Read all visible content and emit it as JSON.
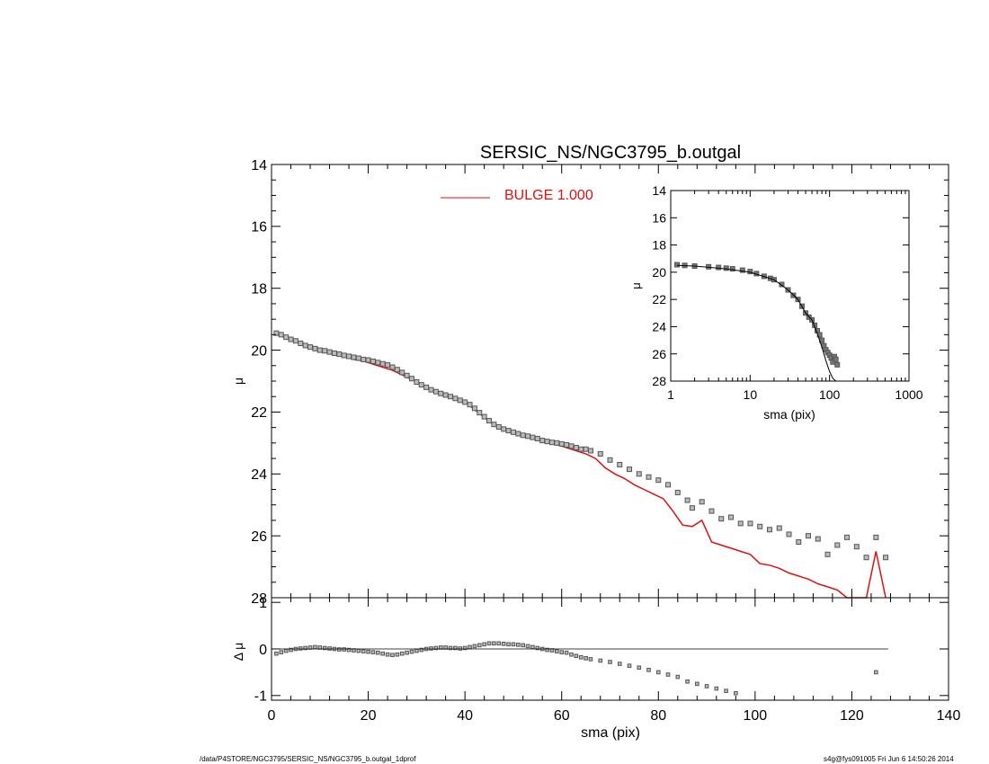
{
  "colors": {
    "axes": "#000000",
    "model": "#e01010",
    "points": "#555555",
    "background": "#ffffff"
  },
  "footer": {
    "path": "/data/P4STORE/NGC3795/SERSIC_NS/NGC3795_b.outgal_1dprof",
    "stamp": "s4g@fys091005  Fri Jun  6 14:50:26 2014"
  },
  "chart_data": [
    {
      "id": "main",
      "type": "scatter",
      "title": "SERSIC_NS/NGC3795_b.outgal",
      "xlabel": "",
      "ylabel": "μ",
      "xlim": [
        0,
        140
      ],
      "ylim": [
        28,
        14
      ],
      "xticks": [
        0,
        20,
        40,
        60,
        80,
        100,
        120,
        140
      ],
      "yticks": [
        14,
        16,
        18,
        20,
        22,
        24,
        26,
        28
      ],
      "legend": {
        "label": "BULGE  1.000",
        "placement": "top-center"
      },
      "series": [
        {
          "name": "BULGE  1.000",
          "style": "line",
          "x": [
            1,
            3,
            5,
            7,
            9,
            11,
            13,
            15,
            17,
            19,
            21,
            23,
            25,
            27,
            29,
            31,
            33,
            35,
            37,
            39,
            40,
            41,
            43,
            45,
            47,
            49,
            51,
            53,
            55,
            57,
            59,
            61,
            63,
            65,
            67,
            69,
            71,
            73,
            75,
            77,
            79,
            81,
            83,
            85,
            87,
            89,
            91,
            93,
            95,
            97,
            99,
            101,
            103,
            105,
            107,
            109,
            111,
            113,
            115,
            117,
            119,
            121,
            123,
            125,
            127
          ],
          "y": [
            19.5,
            19.6,
            19.7,
            19.8,
            19.9,
            20.0,
            20.1,
            20.2,
            20.3,
            20.35,
            20.45,
            20.55,
            20.65,
            20.8,
            20.95,
            21.1,
            21.25,
            21.4,
            21.5,
            21.6,
            21.65,
            21.8,
            22.05,
            22.3,
            22.5,
            22.6,
            22.7,
            22.8,
            22.85,
            22.95,
            23.05,
            23.15,
            23.25,
            23.35,
            23.5,
            23.8,
            24.0,
            24.15,
            24.35,
            24.5,
            24.65,
            24.8,
            25.2,
            25.65,
            25.7,
            25.5,
            26.2,
            26.3,
            26.4,
            26.5,
            26.6,
            26.9,
            26.95,
            27.05,
            27.2,
            27.3,
            27.4,
            27.55,
            27.65,
            27.75,
            28.1,
            28.6,
            28.3,
            26.5,
            28.2
          ]
        },
        {
          "name": "",
          "style": "points",
          "x": [
            1,
            2,
            3,
            4,
            5,
            6,
            7,
            8,
            9,
            10,
            11,
            12,
            13,
            14,
            15,
            16,
            17,
            18,
            19,
            20,
            21,
            22,
            23,
            24,
            25,
            26,
            27,
            28,
            29,
            30,
            31,
            32,
            33,
            34,
            35,
            36,
            37,
            38,
            39,
            40,
            41,
            42,
            43,
            44,
            45,
            46,
            47,
            48,
            49,
            50,
            51,
            52,
            53,
            54,
            55,
            56,
            57,
            58,
            59,
            60,
            61,
            62,
            63,
            64,
            65,
            66,
            68,
            70,
            72,
            74,
            76,
            78,
            80,
            82,
            84,
            86,
            87,
            89,
            91,
            93,
            95,
            97,
            99,
            101,
            103,
            105,
            107,
            109,
            111,
            113,
            115,
            117,
            119,
            121,
            123,
            125,
            127
          ],
          "y": [
            19.45,
            19.5,
            19.58,
            19.65,
            19.7,
            19.78,
            19.85,
            19.9,
            19.95,
            20.0,
            20.02,
            20.06,
            20.1,
            20.13,
            20.17,
            20.2,
            20.23,
            20.26,
            20.3,
            20.32,
            20.36,
            20.4,
            20.44,
            20.48,
            20.55,
            20.63,
            20.72,
            20.82,
            20.92,
            21.03,
            21.12,
            21.2,
            21.28,
            21.34,
            21.4,
            21.45,
            21.5,
            21.56,
            21.62,
            21.68,
            21.76,
            21.88,
            22.02,
            22.15,
            22.28,
            22.4,
            22.48,
            22.55,
            22.6,
            22.65,
            22.7,
            22.75,
            22.78,
            22.82,
            22.86,
            22.92,
            22.95,
            22.98,
            23.0,
            23.03,
            23.06,
            23.1,
            23.15,
            23.2,
            23.2,
            23.25,
            23.35,
            23.55,
            23.7,
            23.85,
            24.0,
            24.1,
            24.2,
            24.35,
            24.6,
            24.85,
            25.1,
            24.9,
            25.2,
            25.45,
            25.4,
            25.6,
            25.6,
            25.7,
            25.8,
            25.75,
            25.95,
            26.2,
            26.0,
            26.1,
            26.6,
            26.3,
            26.05,
            26.35,
            26.7,
            26.05,
            26.7
          ]
        }
      ]
    },
    {
      "id": "inset",
      "type": "scatter",
      "title": "",
      "xlabel": "sma (pix)",
      "ylabel": "μ",
      "xscale": "log",
      "xlim": [
        1,
        1000
      ],
      "ylim": [
        28,
        14
      ],
      "xticks": [
        1,
        10,
        100,
        1000
      ],
      "xticklabels": [
        "1",
        "10",
        "100",
        "1000"
      ],
      "yticks": [
        14,
        16,
        18,
        20,
        22,
        24,
        26,
        28
      ],
      "series": [
        {
          "name": "",
          "style": "points",
          "x": [
            1.2,
            1.5,
            2,
            3,
            4,
            5,
            6,
            8,
            10,
            12,
            15,
            18,
            20,
            25,
            30,
            35,
            40,
            45,
            50,
            55,
            60,
            65,
            70,
            75,
            80,
            85,
            90,
            95,
            100,
            105,
            110,
            115,
            120,
            125
          ],
          "y": [
            19.45,
            19.5,
            19.55,
            19.6,
            19.65,
            19.7,
            19.75,
            19.85,
            19.95,
            20.1,
            20.3,
            20.45,
            20.55,
            20.9,
            21.3,
            21.7,
            22.0,
            22.5,
            23.0,
            23.3,
            23.5,
            23.9,
            24.3,
            24.6,
            25.0,
            25.4,
            25.7,
            25.9,
            26.1,
            26.3,
            26.6,
            26.2,
            26.4,
            26.8
          ]
        },
        {
          "name": "",
          "style": "line",
          "x": [
            1.2,
            2,
            5,
            10,
            20,
            30,
            40,
            50,
            60,
            70,
            80,
            90,
            100,
            110,
            120
          ],
          "y": [
            19.5,
            19.55,
            19.75,
            20.0,
            20.55,
            21.3,
            22.0,
            23.0,
            23.5,
            24.5,
            25.5,
            26.5,
            27.3,
            27.8,
            28.0
          ]
        }
      ]
    },
    {
      "id": "residual",
      "type": "scatter",
      "title": "",
      "xlabel": "sma (pix)",
      "ylabel": "Δ μ",
      "xlim": [
        0,
        140
      ],
      "ylim": [
        -1.1,
        1.1
      ],
      "xticks": [
        0,
        20,
        40,
        60,
        80,
        100,
        120,
        140
      ],
      "yticks": [
        -1,
        0,
        1
      ],
      "yticklabels": [
        "-1",
        "0",
        "1"
      ],
      "series": [
        {
          "name": "",
          "style": "points",
          "x": [
            1,
            2,
            3,
            4,
            5,
            6,
            7,
            8,
            9,
            10,
            11,
            12,
            13,
            14,
            15,
            16,
            17,
            18,
            19,
            20,
            21,
            22,
            23,
            24,
            25,
            26,
            27,
            28,
            29,
            30,
            31,
            32,
            33,
            34,
            35,
            36,
            37,
            38,
            39,
            40,
            41,
            42,
            43,
            44,
            45,
            46,
            47,
            48,
            49,
            50,
            51,
            52,
            53,
            54,
            55,
            56,
            57,
            58,
            59,
            60,
            61,
            62,
            63,
            64,
            65,
            66,
            68,
            70,
            72,
            74,
            76,
            78,
            80,
            82,
            84,
            86,
            88,
            90,
            92,
            94,
            96,
            125
          ],
          "y": [
            -0.1,
            -0.07,
            -0.04,
            -0.02,
            0.0,
            0.01,
            0.02,
            0.03,
            0.04,
            0.03,
            0.02,
            0.01,
            0.0,
            -0.01,
            -0.01,
            -0.02,
            -0.03,
            -0.04,
            -0.05,
            -0.06,
            -0.07,
            -0.08,
            -0.1,
            -0.12,
            -0.13,
            -0.12,
            -0.1,
            -0.08,
            -0.06,
            -0.04,
            -0.02,
            0.0,
            0.01,
            0.02,
            0.03,
            0.03,
            0.02,
            0.02,
            0.01,
            0.02,
            0.04,
            0.06,
            0.08,
            0.1,
            0.12,
            0.12,
            0.12,
            0.11,
            0.1,
            0.1,
            0.09,
            0.08,
            0.06,
            0.04,
            0.02,
            0.0,
            -0.02,
            -0.03,
            -0.05,
            -0.07,
            -0.08,
            -0.12,
            -0.15,
            -0.18,
            -0.2,
            -0.22,
            -0.25,
            -0.28,
            -0.32,
            -0.36,
            -0.4,
            -0.45,
            -0.5,
            -0.55,
            -0.6,
            -0.7,
            -0.75,
            -0.8,
            -0.85,
            -0.9,
            -0.95,
            -0.5
          ]
        },
        {
          "name": "",
          "style": "line",
          "x": [
            1,
            127.5
          ],
          "y": [
            0,
            0
          ]
        }
      ]
    }
  ]
}
